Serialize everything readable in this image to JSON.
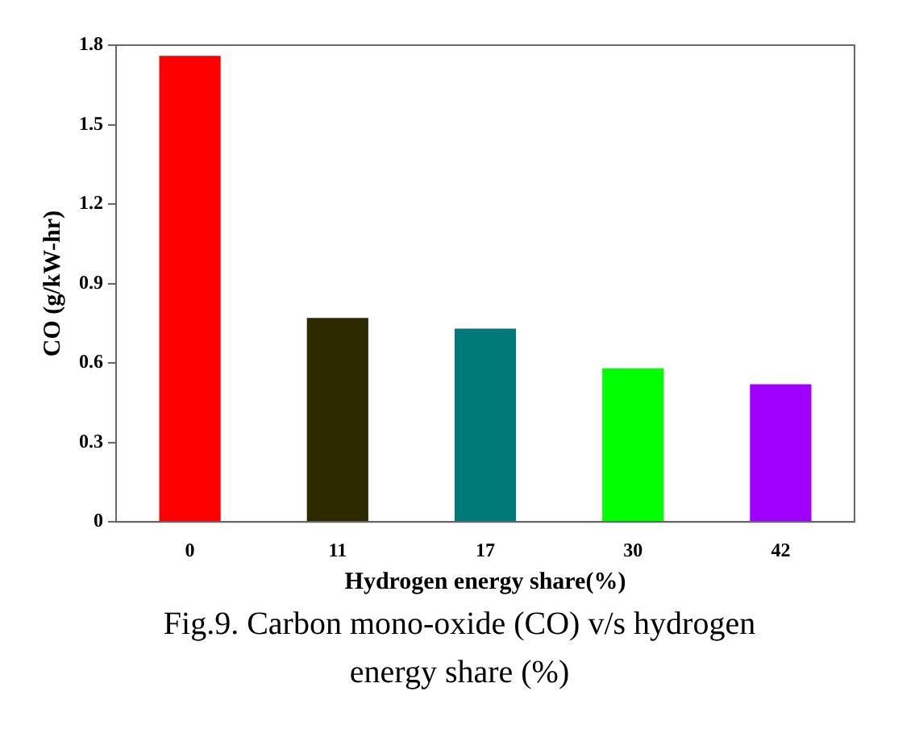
{
  "chart_data": {
    "type": "bar",
    "xlabel": "Hydrogen energy share(%)",
    "ylabel": "CO (g/kW-hr)",
    "categories": [
      "0",
      "11",
      "17",
      "30",
      "42"
    ],
    "values": [
      1.76,
      0.77,
      0.73,
      0.58,
      0.52
    ],
    "colors": [
      "#ff0000",
      "#2e2a00",
      "#007a78",
      "#00ff00",
      "#a000ff"
    ],
    "ylim": [
      0,
      1.8
    ],
    "yticks": [
      0,
      0.3,
      0.6,
      0.9,
      1.2,
      1.5,
      1.8
    ],
    "grid": false,
    "legend": false,
    "annotations": [
      "Fig.9. Carbon mono-oxide (CO) v/s hydrogen energy share (%)"
    ]
  }
}
